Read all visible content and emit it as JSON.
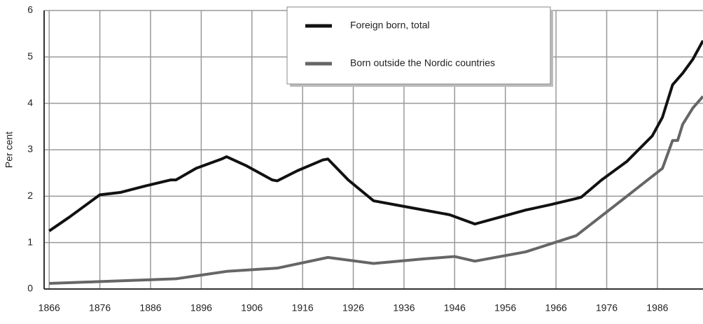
{
  "chart_data": {
    "type": "line",
    "ylabel": "Per cent",
    "xlim": [
      1865,
      1995
    ],
    "ylim": [
      0,
      6
    ],
    "xticks": [
      1866,
      1876,
      1886,
      1896,
      1906,
      1916,
      1926,
      1936,
      1946,
      1956,
      1966,
      1976,
      1986
    ],
    "yticks": [
      0,
      1,
      2,
      3,
      4,
      5,
      6
    ],
    "grid": true,
    "legend": "top",
    "series": [
      {
        "name": "Foreign born, total",
        "color": "#111111",
        "x": [
          1866,
          1870,
          1875,
          1876,
          1880,
          1885,
          1890,
          1891,
          1895,
          1900,
          1901,
          1905,
          1910,
          1911,
          1915,
          1920,
          1921,
          1925,
          1930,
          1935,
          1940,
          1945,
          1950,
          1955,
          1960,
          1965,
          1970,
          1971,
          1975,
          1980,
          1985,
          1987,
          1989,
          1991,
          1993,
          1995
        ],
        "values": [
          1.25,
          1.55,
          1.95,
          2.03,
          2.08,
          2.22,
          2.35,
          2.35,
          2.6,
          2.8,
          2.85,
          2.65,
          2.35,
          2.33,
          2.55,
          2.78,
          2.8,
          2.35,
          1.9,
          1.8,
          1.7,
          1.6,
          1.4,
          1.55,
          1.7,
          1.82,
          1.95,
          1.98,
          2.35,
          2.75,
          3.3,
          3.7,
          4.4,
          4.65,
          4.95,
          5.35
        ]
      },
      {
        "name": "Born outside the Nordic countries",
        "color": "#666666",
        "x": [
          1866,
          1876,
          1886,
          1891,
          1896,
          1901,
          1911,
          1921,
          1930,
          1940,
          1946,
          1950,
          1960,
          1970,
          1980,
          1987,
          1989,
          1990,
          1991,
          1993,
          1995
        ],
        "values": [
          0.12,
          0.16,
          0.2,
          0.22,
          0.3,
          0.38,
          0.45,
          0.68,
          0.55,
          0.65,
          0.7,
          0.6,
          0.8,
          1.15,
          2.0,
          2.6,
          3.2,
          3.2,
          3.55,
          3.9,
          4.15
        ]
      }
    ]
  }
}
